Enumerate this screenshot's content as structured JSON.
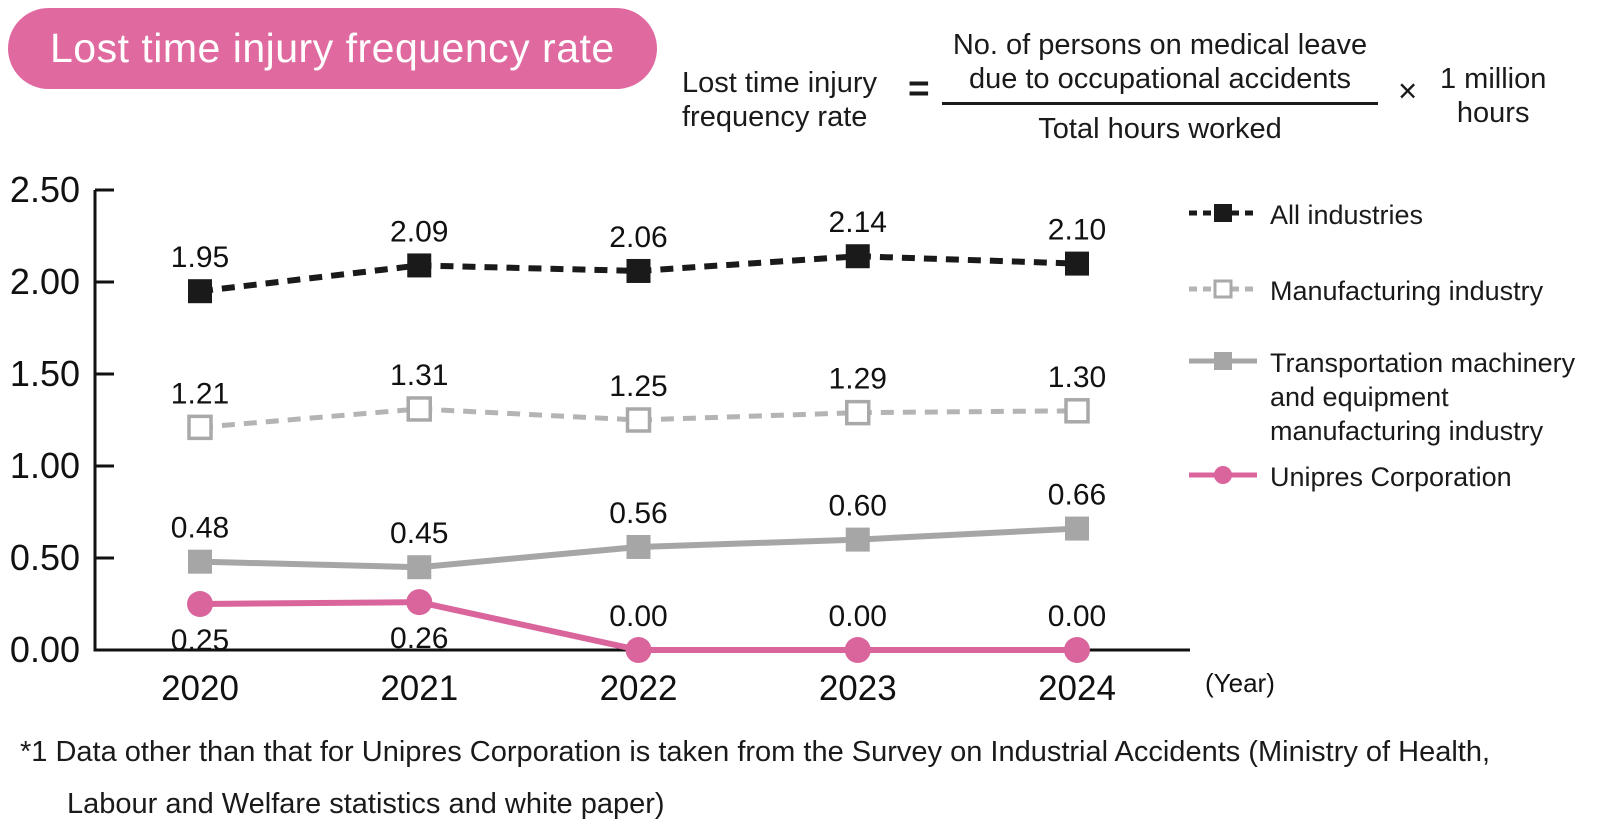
{
  "title": "Lost time injury frequency rate",
  "formula": {
    "lhs_line1": "Lost time injury",
    "lhs_line2": "frequency rate",
    "equals": "=",
    "numerator_line1": "No. of persons on medical leave",
    "numerator_line2": "due to occupational accidents",
    "denominator": "Total hours worked",
    "times": "×",
    "multiplier_line1": "1 million",
    "multiplier_line2": "hours"
  },
  "chart_data": {
    "type": "line",
    "x": [
      "2020",
      "2021",
      "2022",
      "2023",
      "2024"
    ],
    "x_axis_note": "(Year)",
    "ylim": [
      0,
      2.5
    ],
    "ytick_values": [
      2.5,
      2.0,
      1.5,
      1.0,
      0.5,
      0.0
    ],
    "ytick_labels": [
      "2.50",
      "2.00",
      "1.50",
      "1.00",
      "0.50",
      "0.00"
    ],
    "grid": false,
    "legend_position": "right",
    "series": [
      {
        "name": "All industries",
        "values": [
          1.95,
          2.09,
          2.06,
          2.14,
          2.1
        ],
        "color": "#1a1a1a",
        "line_style": "dashed",
        "marker": "filled-square"
      },
      {
        "name": "Manufacturing industry",
        "values": [
          1.21,
          1.31,
          1.25,
          1.29,
          1.3
        ],
        "color": "#b4b4b4",
        "line_style": "dashed",
        "marker": "open-square",
        "marker_stroke": "#a9a9a9"
      },
      {
        "name": "Transportation machinery and equipment manufacturing industry",
        "values": [
          0.48,
          0.45,
          0.56,
          0.6,
          0.66
        ],
        "color": "#a6a6a6",
        "line_style": "solid",
        "marker": "filled-square"
      },
      {
        "name": "Unipres Corporation",
        "values": [
          0.25,
          0.26,
          0.0,
          0.0,
          0.0
        ],
        "color": "#d9659c",
        "line_style": "solid",
        "marker": "circle",
        "label_sides": [
          "below",
          "below",
          "above",
          "above",
          "above"
        ]
      }
    ]
  },
  "footnote": "*1 Data other than that for Unipres Corporation is taken from the Survey on Industrial Accidents (Ministry of Health, Labour and Welfare statistics and white paper)",
  "colors": {
    "title_pill_pink": "#e0699f",
    "unipres_pink": "#d9659c",
    "all_industries_black": "#1a1a1a",
    "manufacturing_gray": "#b4b4b4",
    "transportation_gray": "#a6a6a6"
  }
}
